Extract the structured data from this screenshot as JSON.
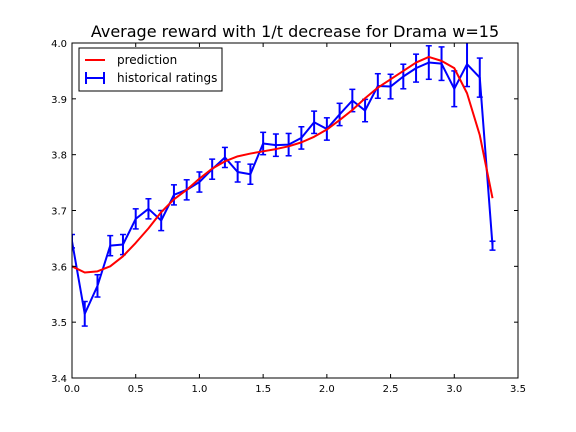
{
  "chart_data": {
    "type": "line",
    "title": "Average reward with 1/t decrease for Drama w=15",
    "xlabel": "",
    "ylabel": "",
    "xlim": [
      0.0,
      3.5
    ],
    "ylim": [
      3.4,
      4.0
    ],
    "xticks": [
      "0.0",
      "0.5",
      "1.0",
      "1.5",
      "2.0",
      "2.5",
      "3.0",
      "3.5"
    ],
    "yticks": [
      "3.4",
      "3.5",
      "3.6",
      "3.7",
      "3.8",
      "3.9",
      "4.0"
    ],
    "xtick_values": [
      0.0,
      0.5,
      1.0,
      1.5,
      2.0,
      2.5,
      3.0,
      3.5
    ],
    "ytick_values": [
      3.4,
      3.5,
      3.6,
      3.7,
      3.8,
      3.9,
      4.0
    ],
    "grid": false,
    "legend_position": "top-left",
    "series": [
      {
        "name": "prediction",
        "color": "#ff0000",
        "x": [
          0.0,
          0.1,
          0.2,
          0.3,
          0.4,
          0.5,
          0.6,
          0.7,
          0.8,
          0.9,
          1.0,
          1.1,
          1.2,
          1.3,
          1.4,
          1.5,
          1.6,
          1.7,
          1.8,
          1.9,
          2.0,
          2.1,
          2.2,
          2.3,
          2.4,
          2.5,
          2.6,
          2.7,
          2.8,
          2.9,
          3.0,
          3.1,
          3.2,
          3.3
        ],
        "y": [
          3.6,
          3.589,
          3.591,
          3.6,
          3.618,
          3.642,
          3.668,
          3.697,
          3.72,
          3.737,
          3.757,
          3.775,
          3.788,
          3.797,
          3.802,
          3.806,
          3.81,
          3.815,
          3.822,
          3.832,
          3.845,
          3.862,
          3.88,
          3.901,
          3.92,
          3.935,
          3.95,
          3.965,
          3.975,
          3.968,
          3.955,
          3.91,
          3.835,
          3.722
        ]
      },
      {
        "name": "historical ratings",
        "color": "#0000ff",
        "x": [
          0.0,
          0.1,
          0.2,
          0.3,
          0.4,
          0.5,
          0.6,
          0.7,
          0.8,
          0.9,
          1.0,
          1.1,
          1.2,
          1.3,
          1.4,
          1.5,
          1.6,
          1.7,
          1.8,
          1.9,
          2.0,
          2.1,
          2.2,
          2.3,
          2.4,
          2.5,
          2.6,
          2.7,
          2.8,
          2.9,
          3.0,
          3.1,
          3.2,
          3.3
        ],
        "y": [
          3.645,
          3.515,
          3.565,
          3.637,
          3.639,
          3.685,
          3.703,
          3.682,
          3.728,
          3.737,
          3.751,
          3.774,
          3.795,
          3.769,
          3.765,
          3.82,
          3.817,
          3.818,
          3.83,
          3.858,
          3.846,
          3.872,
          3.897,
          3.879,
          3.923,
          3.922,
          3.94,
          3.955,
          3.965,
          3.963,
          3.918,
          3.962,
          3.938,
          3.637
        ],
        "err": [
          0.012,
          0.022,
          0.02,
          0.018,
          0.018,
          0.018,
          0.018,
          0.018,
          0.018,
          0.018,
          0.018,
          0.018,
          0.018,
          0.018,
          0.018,
          0.02,
          0.02,
          0.02,
          0.02,
          0.02,
          0.02,
          0.02,
          0.02,
          0.02,
          0.022,
          0.022,
          0.022,
          0.025,
          0.03,
          0.03,
          0.032,
          0.04,
          0.035,
          0.008
        ]
      }
    ]
  }
}
